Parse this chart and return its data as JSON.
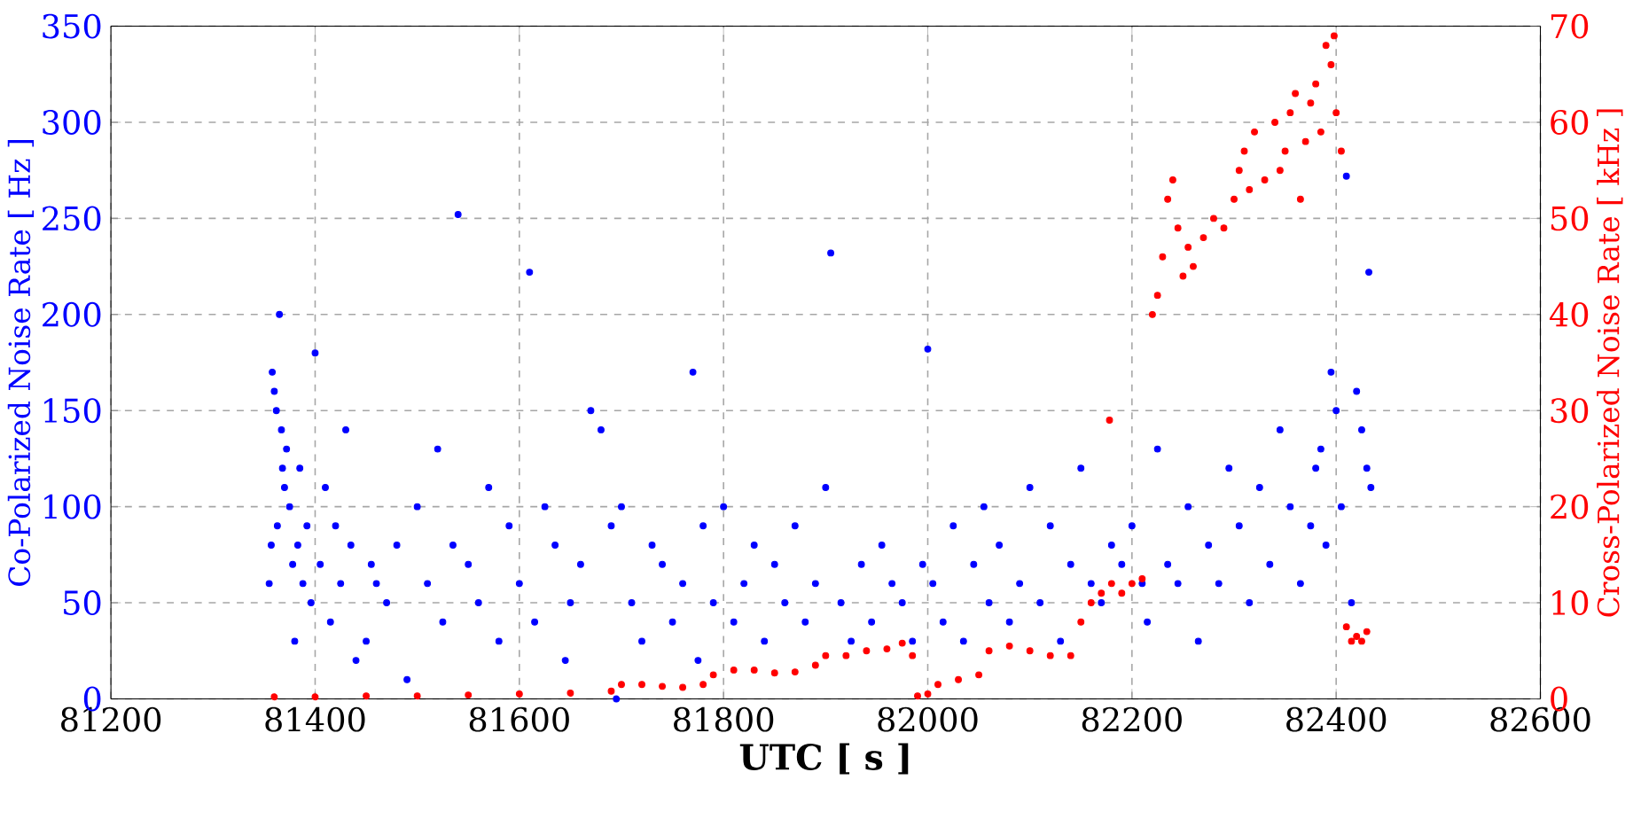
{
  "chart_data": {
    "type": "scatter",
    "xlabel": "UTC [ s ]",
    "ylabel": "Co-Polarized Noise Rate [ Hz ]",
    "y2label": "Cross-Polarized Noise Rate [ kHz ]",
    "xlim": [
      81200,
      82600
    ],
    "xticks": [
      81200,
      81400,
      81600,
      81800,
      82000,
      82200,
      82400,
      82600
    ],
    "ylim": [
      0,
      350
    ],
    "yticks": [
      0,
      50,
      100,
      150,
      200,
      250,
      300,
      350
    ],
    "y2lim": [
      0,
      70
    ],
    "y2ticks": [
      0,
      10,
      20,
      30,
      40,
      50,
      60,
      70
    ],
    "grid": true,
    "marker": "circle",
    "series": [
      {
        "color": "#0000ff",
        "x": [
          81355,
          81357,
          81358,
          81360,
          81362,
          81363,
          81365,
          81367,
          81368,
          81370,
          81372,
          81375,
          81378,
          81380,
          81383,
          81385,
          81388,
          81392,
          81396,
          81400,
          81405,
          81410,
          81415,
          81420,
          81425,
          81430,
          81435,
          81440,
          81450,
          81455,
          81460,
          81470,
          81480,
          81490,
          81500,
          81510,
          81520,
          81525,
          81535,
          81540,
          81550,
          81560,
          81570,
          81580,
          81590,
          81600,
          81610,
          81615,
          81625,
          81635,
          81645,
          81650,
          81660,
          81670,
          81680,
          81690,
          81695,
          81700,
          81710,
          81720,
          81730,
          81740,
          81750,
          81760,
          81770,
          81775,
          81780,
          81790,
          81800,
          81810,
          81820,
          81830,
          81840,
          81850,
          81860,
          81870,
          81880,
          81890,
          81900,
          81905,
          81915,
          81925,
          81935,
          81945,
          81955,
          81965,
          81975,
          81985,
          81995,
          82000,
          82005,
          82015,
          82025,
          82035,
          82045,
          82055,
          82060,
          82070,
          82080,
          82090,
          82100,
          82110,
          82120,
          82130,
          82140,
          82150,
          82160,
          82170,
          82180,
          82190,
          82200,
          82210,
          82215,
          82225,
          82235,
          82245,
          82255,
          82265,
          82275,
          82285,
          82295,
          82305,
          82315,
          82325,
          82335,
          82345,
          82355,
          82365,
          82375,
          82380,
          82385,
          82390,
          82395,
          82400,
          82405,
          82410,
          82415,
          82420,
          82425,
          82430,
          82432,
          82434
        ],
        "values": [
          60,
          80,
          170,
          160,
          150,
          90,
          200,
          140,
          120,
          110,
          130,
          100,
          70,
          30,
          80,
          120,
          60,
          90,
          50,
          180,
          70,
          110,
          40,
          90,
          60,
          140,
          80,
          20,
          30,
          70,
          60,
          50,
          80,
          10,
          100,
          60,
          130,
          40,
          80,
          252,
          70,
          50,
          110,
          30,
          90,
          60,
          222,
          40,
          100,
          80,
          20,
          50,
          70,
          150,
          140,
          90,
          0,
          100,
          50,
          30,
          80,
          70,
          40,
          60,
          170,
          20,
          90,
          50,
          100,
          40,
          60,
          80,
          30,
          70,
          50,
          90,
          40,
          60,
          110,
          232,
          50,
          30,
          70,
          40,
          80,
          60,
          50,
          30,
          70,
          182,
          60,
          40,
          90,
          30,
          70,
          100,
          50,
          80,
          40,
          60,
          110,
          50,
          90,
          30,
          70,
          120,
          60,
          50,
          80,
          70,
          90,
          60,
          40,
          130,
          70,
          60,
          100,
          30,
          80,
          60,
          120,
          90,
          50,
          110,
          70,
          140,
          100,
          60,
          90,
          120,
          130,
          80,
          170,
          150,
          100,
          272,
          50,
          160,
          140,
          120,
          222,
          110
        ]
      },
      {
        "color": "#ff0000",
        "axis": "y2",
        "x": [
          81360,
          81400,
          81450,
          81500,
          81550,
          81600,
          81650,
          81690,
          81700,
          81720,
          81740,
          81760,
          81780,
          81790,
          81810,
          81830,
          81850,
          81870,
          81890,
          81900,
          81920,
          81940,
          81960,
          81975,
          81985,
          81990,
          82000,
          82010,
          82030,
          82050,
          82060,
          82080,
          82100,
          82120,
          82140,
          82150,
          82160,
          82170,
          82178,
          82180,
          82190,
          82200,
          82210,
          82220,
          82225,
          82230,
          82235,
          82240,
          82245,
          82250,
          82255,
          82260,
          82270,
          82280,
          82290,
          82300,
          82305,
          82310,
          82315,
          82320,
          82330,
          82340,
          82345,
          82350,
          82355,
          82360,
          82365,
          82370,
          82375,
          82380,
          82385,
          82390,
          82395,
          82398,
          82400,
          82405,
          82410,
          82415,
          82420,
          82425,
          82430
        ],
        "values": [
          0.2,
          0.2,
          0.3,
          0.3,
          0.4,
          0.5,
          0.6,
          0.8,
          1.5,
          1.5,
          1.3,
          1.2,
          1.5,
          2.5,
          3,
          3,
          2.7,
          2.8,
          3.5,
          4.5,
          4.5,
          5,
          5.2,
          5.8,
          4.5,
          0.3,
          0.5,
          1.5,
          2,
          2.5,
          5,
          5.5,
          5,
          4.5,
          4.5,
          8,
          10,
          11,
          29,
          12,
          11,
          12,
          12.5,
          40,
          42,
          46,
          52,
          54,
          49,
          44,
          47,
          45,
          48,
          50,
          49,
          52,
          55,
          57,
          53,
          59,
          54,
          60,
          55,
          57,
          61,
          63,
          52,
          58,
          62,
          64,
          59,
          68,
          66,
          69,
          61,
          57,
          7.5,
          6,
          6.5,
          6,
          7
        ]
      }
    ]
  }
}
